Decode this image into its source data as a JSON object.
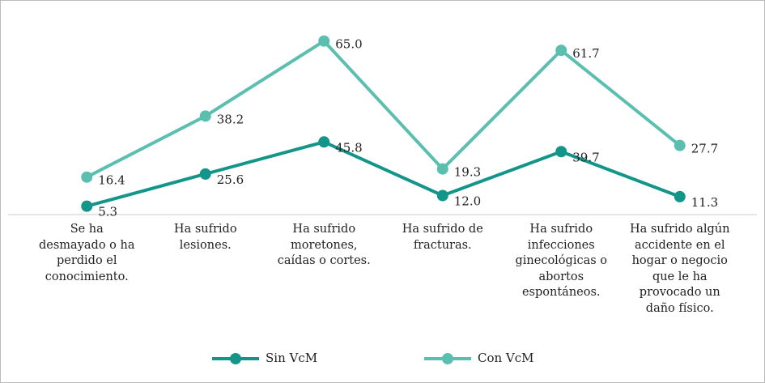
{
  "chart_data": {
    "type": "line",
    "categories": [
      "Se ha desmayado o ha perdido el conocimiento.",
      "Ha sufrido lesiones.",
      "Ha sufrido moretones, caídas o cortes.",
      "Ha sufrido de fracturas.",
      "Ha sufrido infecciones ginecológicas o abortos espontáneos.",
      "Ha sufrido algún accidente en el hogar o negocio que le ha provocado un daño físico."
    ],
    "series": [
      {
        "name": "Sin VcM",
        "color": "#13958a",
        "values": [
          5.3,
          25.6,
          45.8,
          12.0,
          39.7,
          11.3
        ],
        "value_labels": [
          "5.3",
          "25.6",
          "45.8",
          "12.0",
          "39.7",
          "11.3"
        ]
      },
      {
        "name": "Con VcM",
        "color": "#5bbfb0",
        "axis": "y2",
        "values": [
          16.4,
          38.2,
          65.0,
          19.3,
          61.7,
          27.7
        ],
        "value_labels": [
          "16.4",
          "38.2",
          "65.0",
          "19.3",
          "61.7",
          "27.7"
        ]
      }
    ],
    "ylim": [
      0,
      120
    ],
    "y2lim": [
      3,
      71
    ],
    "legend": "bottom"
  }
}
